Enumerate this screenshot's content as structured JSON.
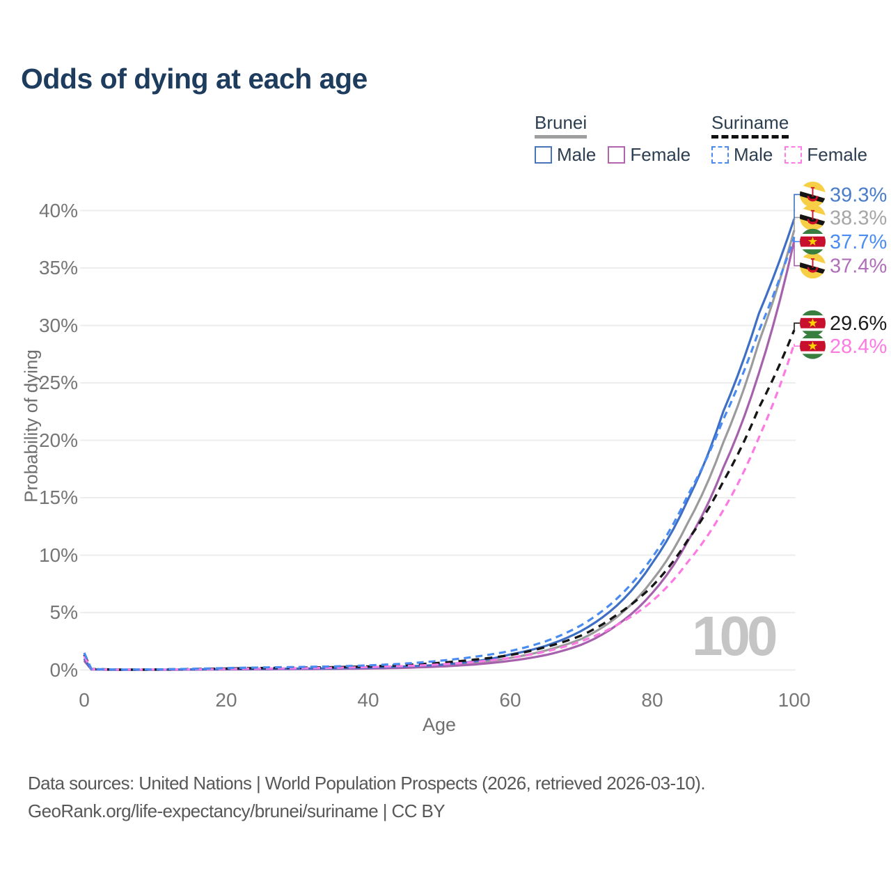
{
  "title": "Odds of dying at each age",
  "watermark": "100",
  "legend": {
    "groups": [
      {
        "name": "Brunei",
        "underline": "solid",
        "underline_color": "#9e9e9e",
        "items": [
          {
            "label": "Male",
            "color": "#4a74ba",
            "dashed": false
          },
          {
            "label": "Female",
            "color": "#b165af",
            "dashed": false
          }
        ]
      },
      {
        "name": "Suriname",
        "underline": "dashed",
        "underline_color": "#111111",
        "items": [
          {
            "label": "Male",
            "color": "#4a8bf2",
            "dashed": true
          },
          {
            "label": "Female",
            "color": "#ff7ce8",
            "dashed": true
          }
        ]
      }
    ]
  },
  "footer": {
    "line1": "Data sources: United Nations | World Population Prospects (2026, retrieved 2026-03-10).",
    "line2": "GeoRank.org/life-expectancy/brunei/suriname | CC BY"
  },
  "chart_data": {
    "type": "line",
    "title": "Odds of dying at each age",
    "xlabel": "Age",
    "ylabel": "Probability of dying",
    "unit": "%",
    "xlim": [
      0,
      100
    ],
    "ylim": [
      0,
      42
    ],
    "x_ticks": [
      0,
      20,
      40,
      60,
      80,
      100
    ],
    "y_ticks": [
      0,
      5,
      10,
      15,
      20,
      25,
      30,
      35,
      40
    ],
    "grid": "horizontal",
    "grid_color": "#ededed",
    "legend_position": "top-right",
    "x": [
      0,
      1,
      5,
      10,
      15,
      20,
      25,
      30,
      35,
      40,
      45,
      50,
      55,
      60,
      65,
      70,
      75,
      80,
      85,
      90,
      95,
      100
    ],
    "series": [
      {
        "id": "brunei-total",
        "name": "Brunei",
        "country": "Brunei",
        "sex": "both",
        "color": "#9b9b9b",
        "dash": null,
        "width": 3.2,
        "flag": "brunei",
        "end_label": {
          "text": "38.3%",
          "color": "#a6a6a6",
          "at_pct": 39.4
        },
        "values": [
          0.9,
          0.05,
          0.02,
          0.02,
          0.04,
          0.06,
          0.08,
          0.1,
          0.12,
          0.16,
          0.24,
          0.38,
          0.62,
          1.05,
          1.7,
          2.7,
          4.6,
          7.8,
          12.8,
          19.8,
          28.5,
          38.3
        ]
      },
      {
        "id": "brunei-female",
        "name": "Brunei Female",
        "country": "Brunei",
        "sex": "female",
        "color": "#a661ad",
        "dash": null,
        "width": 3.2,
        "flag": "brunei",
        "end_label": {
          "text": "37.4%",
          "color": "#b16ebb",
          "at_pct": 35.2
        },
        "values": [
          0.8,
          0.05,
          0.015,
          0.02,
          0.03,
          0.05,
          0.06,
          0.08,
          0.1,
          0.13,
          0.19,
          0.3,
          0.48,
          0.8,
          1.3,
          2.2,
          3.9,
          6.7,
          11.2,
          17.6,
          25.8,
          37.4
        ]
      },
      {
        "id": "brunei-male",
        "name": "Brunei Male",
        "country": "Brunei",
        "sex": "male",
        "color": "#3e6fc4",
        "dash": null,
        "width": 3.2,
        "flag": "brunei",
        "end_label": {
          "text": "39.3%",
          "color": "#4a7cca",
          "at_pct": 41.4
        },
        "values": [
          1.0,
          0.06,
          0.02,
          0.03,
          0.05,
          0.08,
          0.1,
          0.12,
          0.15,
          0.2,
          0.3,
          0.45,
          0.75,
          1.35,
          2.1,
          3.4,
          5.6,
          9.3,
          14.8,
          22.5,
          31.0,
          39.3
        ]
      },
      {
        "id": "suriname-total",
        "name": "Suriname",
        "country": "Suriname",
        "sex": "both",
        "color": "#161616",
        "dash": "11 8",
        "width": 3.4,
        "flag": "suriname",
        "end_label": {
          "text": "29.6%",
          "color": "#1c1c1c",
          "at_pct": 30.2
        },
        "values": [
          1.35,
          0.08,
          0.035,
          0.04,
          0.08,
          0.13,
          0.17,
          0.2,
          0.24,
          0.31,
          0.43,
          0.62,
          0.9,
          1.3,
          2.0,
          3.0,
          4.8,
          7.3,
          11.3,
          16.4,
          22.8,
          29.6
        ]
      },
      {
        "id": "suriname-female",
        "name": "Suriname Female",
        "country": "Suriname",
        "sex": "female",
        "color": "#fd7ae3",
        "dash": "10 7",
        "width": 3.2,
        "flag": "suriname",
        "end_label": {
          "text": "28.4%",
          "color": "#fd7ae3",
          "at_pct": 28.2
        },
        "values": [
          1.2,
          0.07,
          0.03,
          0.035,
          0.06,
          0.09,
          0.12,
          0.15,
          0.19,
          0.25,
          0.34,
          0.48,
          0.7,
          1.05,
          1.6,
          2.5,
          3.9,
          6.0,
          9.4,
          13.9,
          20.2,
          28.4
        ]
      },
      {
        "id": "suriname-male",
        "name": "Suriname Male",
        "country": "Suriname",
        "sex": "male",
        "color": "#4a8bf2",
        "dash": "10 7",
        "width": 3.2,
        "flag": "suriname",
        "end_label": {
          "text": "37.7%",
          "color": "#4a8cf2",
          "at_pct": 37.3
        },
        "values": [
          1.5,
          0.09,
          0.04,
          0.05,
          0.1,
          0.17,
          0.22,
          0.26,
          0.31,
          0.4,
          0.55,
          0.8,
          1.15,
          1.65,
          2.5,
          3.9,
          6.2,
          9.8,
          15.2,
          21.8,
          29.5,
          37.7
        ]
      }
    ]
  }
}
